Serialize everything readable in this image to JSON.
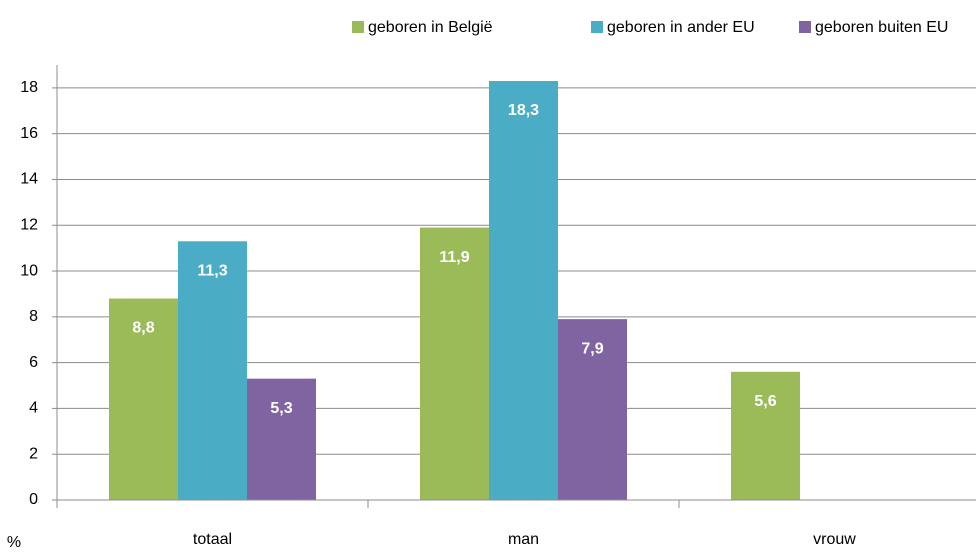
{
  "chart_data": {
    "type": "bar",
    "categories": [
      "totaal",
      "man",
      "vrouw"
    ],
    "series": [
      {
        "name": "geboren in België",
        "color": "#9bbb59",
        "values": [
          8.8,
          11.9,
          5.6
        ],
        "value_labels": [
          "8,8",
          "11,9",
          "5,6"
        ]
      },
      {
        "name": "geboren in ander EU",
        "color": "#4bacc6",
        "values": [
          11.3,
          18.3,
          null
        ],
        "value_labels": [
          "11,3",
          "18,3",
          null
        ]
      },
      {
        "name": "geboren buiten EU",
        "color": "#8064a2",
        "values": [
          5.3,
          7.9,
          null
        ],
        "value_labels": [
          "5,3",
          "7,9",
          null
        ]
      }
    ],
    "ylabel": "%",
    "ylim": [
      0,
      19
    ],
    "yticks": [
      0,
      2,
      4,
      6,
      8,
      10,
      12,
      14,
      16,
      18
    ],
    "grid": true,
    "legend": "top"
  }
}
